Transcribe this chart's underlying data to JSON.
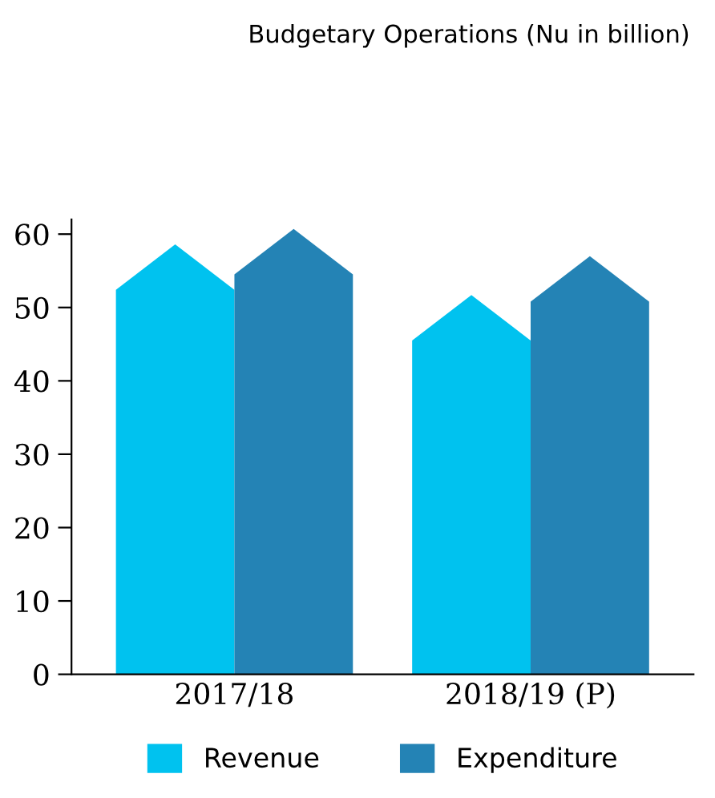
{
  "chart_data": {
    "type": "bar",
    "title": "Budgetary Operations (Nu in billion)",
    "categories": [
      "2017/18",
      "2018/19 (P)"
    ],
    "series": [
      {
        "name": "Revenue",
        "color": "#00c2ef",
        "values": [
          58.6,
          51.7
        ]
      },
      {
        "name": "Expenditure",
        "color": "#2483b5",
        "values": [
          60.7,
          57.0
        ]
      }
    ],
    "ylim": [
      0,
      62
    ],
    "yticks": [
      0,
      10,
      20,
      30,
      40,
      50,
      60
    ],
    "grid": false,
    "legend": "bottom"
  }
}
